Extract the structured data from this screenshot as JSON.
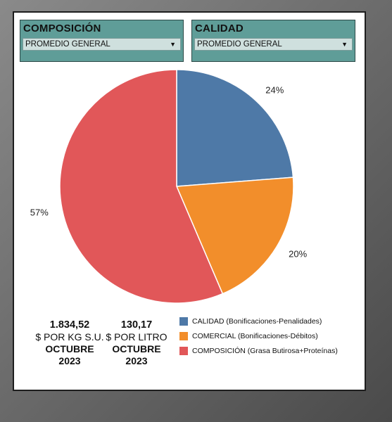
{
  "filters": [
    {
      "title": "COMPOSICIÓN",
      "selected": "PROMEDIO GENERAL"
    },
    {
      "title": "CALIDAD",
      "selected": "PROMEDIO GENERAL"
    }
  ],
  "chart_data": {
    "type": "pie",
    "slices": [
      {
        "label": "CALIDAD (Bonificaciones-Penalidades)",
        "value": 24,
        "display": "24%",
        "color": "#4e79a7"
      },
      {
        "label": "COMERCIAL (Bonificaciones-Débitos)",
        "value": 20,
        "display": "20%",
        "color": "#f28e2b"
      },
      {
        "label": "COMPOSICIÓN (Grasa Butirosa+Proteínas)",
        "value": 57,
        "display": "57%",
        "color": "#e15759"
      }
    ]
  },
  "kpis": [
    {
      "value": "1.834,52",
      "unit": "$ POR KG S.U.",
      "month": "OCTUBRE",
      "year": "2023"
    },
    {
      "value": "130,17",
      "unit": "$ POR LITRO",
      "month": "OCTUBRE",
      "year": "2023"
    }
  ],
  "legend": [
    {
      "prefix": "CALIDAD",
      "detail": " (Bonificaciones-Penalidades)",
      "color": "#4e79a7"
    },
    {
      "prefix": "COMERCIAL",
      "detail": " (Bonificaciones-Débitos)",
      "color": "#f28e2b"
    },
    {
      "prefix": "COMPOSICIÓN",
      "detail": " (Grasa Butirosa+Proteínas)",
      "color": "#e15759"
    }
  ]
}
